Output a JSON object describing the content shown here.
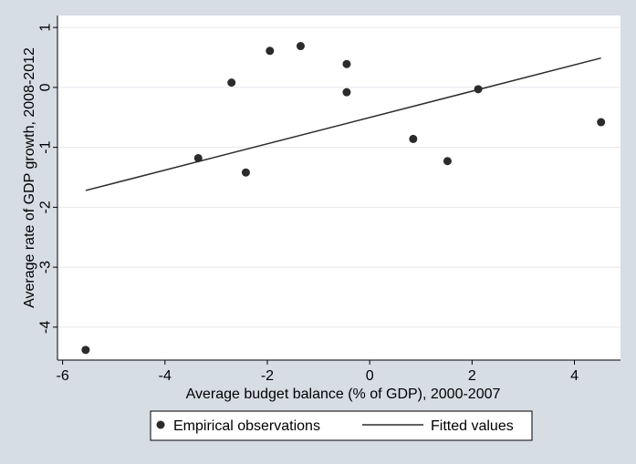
{
  "chart_data": {
    "type": "scatter",
    "xlabel": "Average budget balance (% of GDP), 2000-2007",
    "ylabel": "Average rate of GDP growth, 2008-2012",
    "xlim": [
      -6.1,
      4.9
    ],
    "ylim": [
      -4.55,
      1.2
    ],
    "xticks": [
      -6,
      -4,
      -2,
      0,
      2,
      4
    ],
    "yticks": [
      -4,
      -3,
      -2,
      -1,
      0,
      1
    ],
    "grid": "horizontal",
    "legend_position": "bottom",
    "colors": {
      "background": "#d6dde3",
      "plot_area": "#ffffff",
      "marks": "#2b2b2b",
      "grid": "#e4e8ec"
    },
    "series": [
      {
        "name": "Empirical observations",
        "kind": "scatter",
        "points": [
          {
            "x": -5.55,
            "y": -4.38
          },
          {
            "x": -3.35,
            "y": -1.18
          },
          {
            "x": -2.7,
            "y": 0.08
          },
          {
            "x": -2.42,
            "y": -1.42
          },
          {
            "x": -1.95,
            "y": 0.61
          },
          {
            "x": -1.35,
            "y": 0.69
          },
          {
            "x": -0.45,
            "y": 0.39
          },
          {
            "x": -0.45,
            "y": -0.08
          },
          {
            "x": 0.85,
            "y": -0.86
          },
          {
            "x": 1.52,
            "y": -1.23
          },
          {
            "x": 2.12,
            "y": -0.03
          },
          {
            "x": 4.52,
            "y": -0.58
          }
        ]
      },
      {
        "name": "Fitted values",
        "kind": "line",
        "points": [
          {
            "x": -5.55,
            "y": -1.72
          },
          {
            "x": 4.52,
            "y": 0.49
          }
        ]
      }
    ]
  }
}
